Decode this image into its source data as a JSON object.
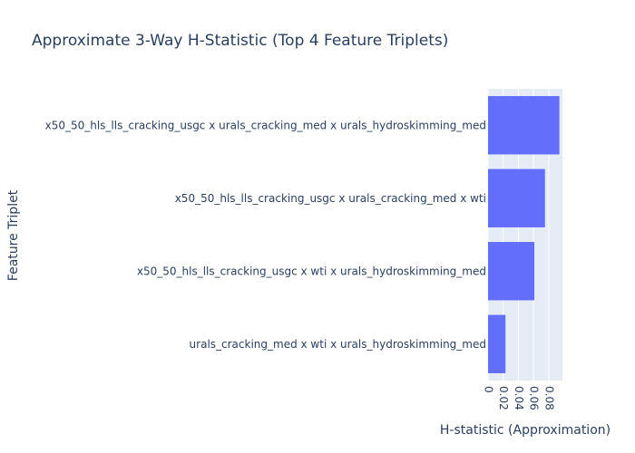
{
  "chart_data": {
    "type": "bar",
    "orientation": "horizontal",
    "title": "Approximate 3-Way H-Statistic (Top 4 Feature Triplets)",
    "xlabel": "H-statistic (Approximation)",
    "ylabel": "Feature Triplet",
    "categories": [
      "x50_50_hls_lls_cracking_usgc x urals_cracking_med x urals_hydroskimming_med",
      "x50_50_hls_lls_cracking_usgc x urals_cracking_med x wti",
      "x50_50_hls_lls_cracking_usgc x wti x urals_hydroskimming_med",
      "urals_cracking_med x wti x urals_hydroskimming_med"
    ],
    "values": [
      0.094,
      0.075,
      0.061,
      0.023
    ],
    "xlim": [
      0,
      0.098
    ],
    "xticks": [
      0,
      0.02,
      0.04,
      0.06,
      0.08
    ],
    "xtick_labels": [
      "0",
      "0.02",
      "0.04",
      "0.06",
      "0.08"
    ],
    "grid": true,
    "colors": {
      "bar": "#636efa",
      "plot_bg": "#e5ecf6",
      "grid": "#ffffff",
      "text": "#2a3f5f"
    }
  }
}
